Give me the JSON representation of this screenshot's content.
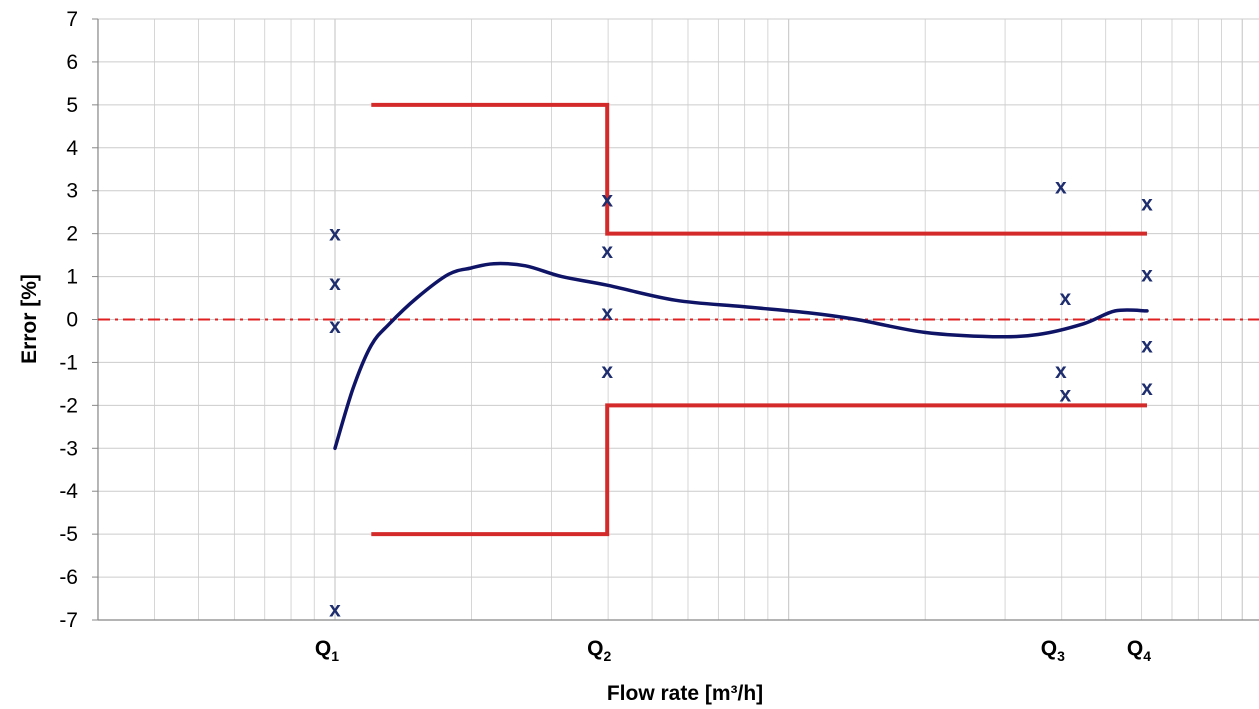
{
  "chart_data": {
    "type": "line",
    "title": "",
    "xlabel": "Flow rate [m³/h]",
    "ylabel": "Error [%]",
    "ylim": [
      -7,
      7
    ],
    "xscale": "log",
    "yticks": [
      {
        "value": 7,
        "label": "7"
      },
      {
        "value": 6,
        "label": "6"
      },
      {
        "value": 5,
        "label": "5"
      },
      {
        "value": 4,
        "label": "4"
      },
      {
        "value": 3,
        "label": "3"
      },
      {
        "value": 2,
        "label": "2"
      },
      {
        "value": 1,
        "label": "1"
      },
      {
        "value": 0,
        "label": "0"
      },
      {
        "value": -1,
        "label": "-1"
      },
      {
        "value": -2,
        "label": "-2"
      },
      {
        "value": -3,
        "label": "-3"
      },
      {
        "value": -4,
        "label": "-4"
      },
      {
        "value": -5,
        "label": "-5"
      },
      {
        "value": -6,
        "label": "-6"
      },
      {
        "value": -7,
        "label": "-7"
      }
    ],
    "grid": true,
    "xticks": [
      {
        "label": "Q",
        "sub": "1",
        "x": 1.0
      },
      {
        "label": "Q",
        "sub": "2",
        "x": 1.6
      },
      {
        "label": "Q",
        "sub": "3",
        "x": 2.6
      },
      {
        "label": "Q",
        "sub": "4",
        "x": 2.79
      }
    ],
    "colors": {
      "limits": "#d42a2a",
      "curve": "#0f1466",
      "markers": "#1e2d6e",
      "zero_line": "#e02020",
      "grid": "#cccccc",
      "axis": "#888888"
    },
    "series": [
      {
        "type": "step",
        "role": "upper limit",
        "points": [
          [
            1.08,
            5
          ],
          [
            1.6,
            5
          ],
          [
            1.6,
            2
          ],
          [
            2.79,
            2
          ]
        ]
      },
      {
        "type": "step",
        "role": "lower limit",
        "points": [
          [
            1.08,
            -5
          ],
          [
            1.6,
            -5
          ],
          [
            1.6,
            -2
          ],
          [
            2.79,
            -2
          ]
        ]
      },
      {
        "type": "line",
        "role": "error curve",
        "points": [
          [
            1.0,
            -3
          ],
          [
            1.04,
            -1.6
          ],
          [
            1.08,
            -0.6
          ],
          [
            1.12,
            -0.1
          ],
          [
            1.18,
            0.5
          ],
          [
            1.25,
            1.05
          ],
          [
            1.3,
            1.2
          ],
          [
            1.35,
            1.3
          ],
          [
            1.42,
            1.25
          ],
          [
            1.5,
            1.0
          ],
          [
            1.6,
            0.8
          ],
          [
            1.75,
            0.45
          ],
          [
            1.9,
            0.3
          ],
          [
            2.05,
            0.15
          ],
          [
            2.15,
            0.0
          ],
          [
            2.3,
            -0.3
          ],
          [
            2.45,
            -0.4
          ],
          [
            2.55,
            -0.35
          ],
          [
            2.65,
            -0.1
          ],
          [
            2.72,
            0.2
          ],
          [
            2.79,
            0.2
          ]
        ]
      },
      {
        "type": "scatter",
        "role": "measurements",
        "marker": "x",
        "points": [
          [
            1.0,
            2.0
          ],
          [
            1.0,
            0.85
          ],
          [
            1.0,
            -0.15
          ],
          [
            1.0,
            -6.75
          ],
          [
            1.6,
            2.8
          ],
          [
            1.6,
            1.6
          ],
          [
            1.6,
            0.15
          ],
          [
            1.6,
            -1.2
          ],
          [
            2.6,
            3.1
          ],
          [
            2.61,
            0.5
          ],
          [
            2.6,
            -1.2
          ],
          [
            2.61,
            -1.75
          ],
          [
            2.79,
            2.7
          ],
          [
            2.79,
            1.05
          ],
          [
            2.79,
            -0.6
          ],
          [
            2.79,
            -1.6
          ]
        ]
      }
    ],
    "zero_line": {
      "y": 0,
      "style": "dash-dot"
    }
  }
}
